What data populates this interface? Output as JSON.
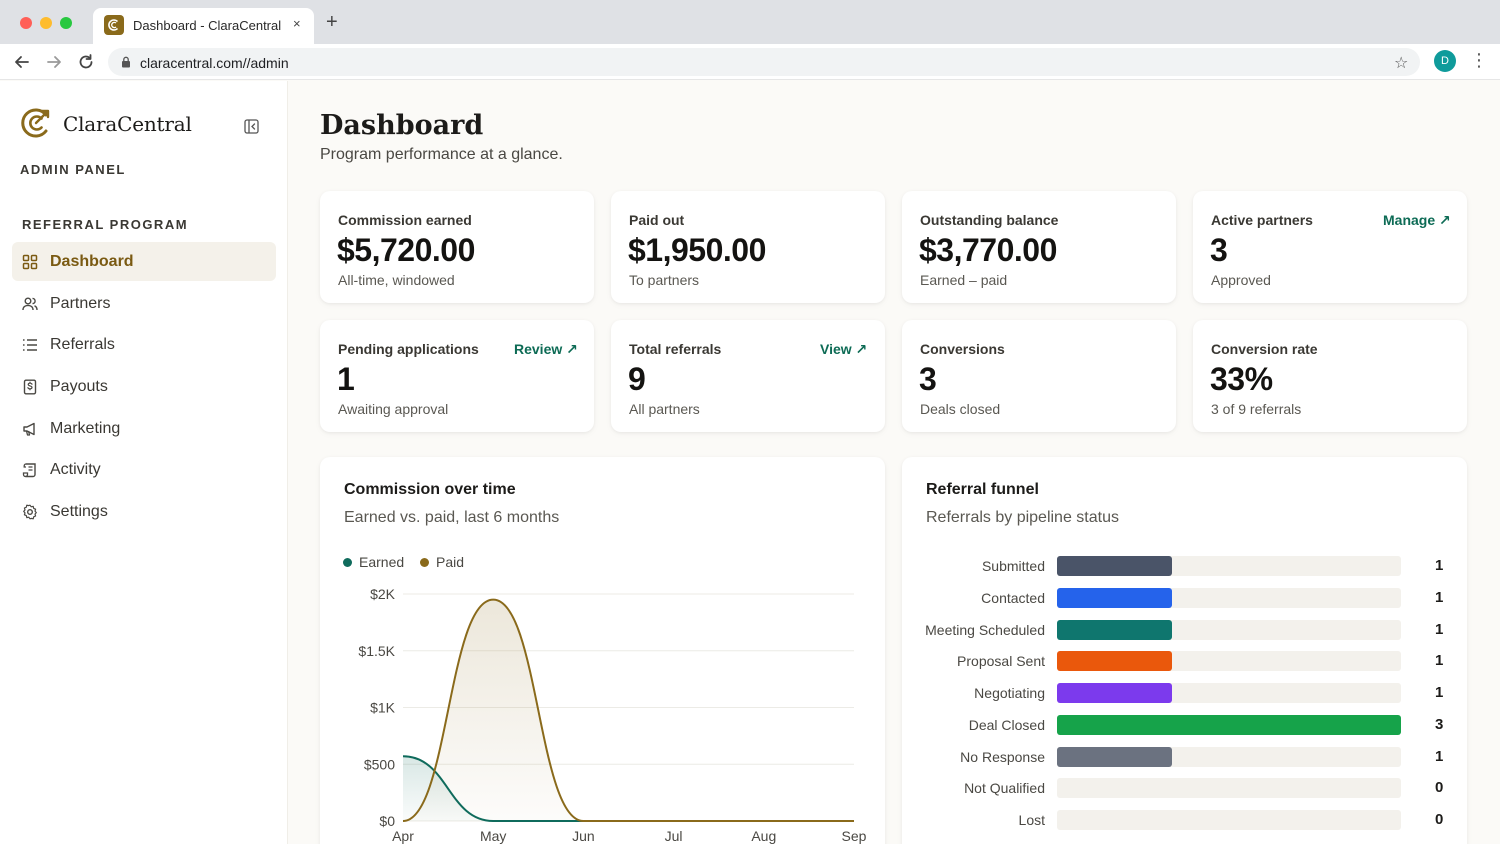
{
  "browser": {
    "tab_title": "Dashboard - ClaraCentral",
    "tab_close": "×",
    "new_tab": "+",
    "url": "claracentral.com//admin",
    "profile_initial": "D"
  },
  "sidebar": {
    "brand": "ClaraCentral",
    "admin_label": "ADMIN PANEL",
    "section_label": "REFERRAL PROGRAM",
    "items": [
      {
        "label": "Dashboard",
        "icon": "grid-icon",
        "active": true
      },
      {
        "label": "Partners",
        "icon": "users-icon",
        "active": false
      },
      {
        "label": "Referrals",
        "icon": "list-icon",
        "active": false
      },
      {
        "label": "Payouts",
        "icon": "dollar-doc-icon",
        "active": false
      },
      {
        "label": "Marketing",
        "icon": "megaphone-icon",
        "active": false
      },
      {
        "label": "Activity",
        "icon": "scroll-icon",
        "active": false
      },
      {
        "label": "Settings",
        "icon": "gear-icon",
        "active": false
      }
    ]
  },
  "header": {
    "title": "Dashboard",
    "subtitle": "Program performance at a glance."
  },
  "stats": [
    {
      "label": "Commission earned",
      "value": "$5,720.00",
      "note": "All-time, windowed",
      "link": ""
    },
    {
      "label": "Paid out",
      "value": "$1,950.00",
      "note": "To partners",
      "link": ""
    },
    {
      "label": "Outstanding balance",
      "value": "$3,770.00",
      "note": "Earned – paid",
      "link": ""
    },
    {
      "label": "Active partners",
      "value": "3",
      "note": "Approved",
      "link": "Manage ↗"
    },
    {
      "label": "Pending applications",
      "value": "1",
      "note": "Awaiting approval",
      "link": "Review ↗"
    },
    {
      "label": "Total referrals",
      "value": "9",
      "note": "All partners",
      "link": "View ↗"
    },
    {
      "label": "Conversions",
      "value": "3",
      "note": "Deals closed",
      "link": ""
    },
    {
      "label": "Conversion rate",
      "value": "33%",
      "note": "3 of 9 referrals",
      "link": ""
    }
  ],
  "commission_panel": {
    "title": "Commission over time",
    "subtitle": "Earned vs. paid, last 6 months"
  },
  "funnel_panel": {
    "title": "Referral funnel",
    "subtitle": "Referrals by pipeline status"
  },
  "colors": {
    "accent": "#7a5a12",
    "earned": "#0f6b5c",
    "paid": "#8a6a1b",
    "link": "#0d6b55"
  },
  "chart_data": [
    {
      "type": "area",
      "x": [
        "Apr",
        "May",
        "Jun",
        "Jul",
        "Aug",
        "Sep"
      ],
      "ylim": [
        0,
        2000
      ],
      "yticks": [
        "$0",
        "$500",
        "$1K",
        "$1.5K",
        "$2K"
      ],
      "ytick_values": [
        0,
        500,
        1000,
        1500,
        2000
      ],
      "series": [
        {
          "name": "Earned",
          "color": "#0f6b5c",
          "values": [
            570,
            0,
            0,
            0,
            0,
            0
          ]
        },
        {
          "name": "Paid",
          "color": "#8a6a1b",
          "values": [
            0,
            1950,
            0,
            0,
            0,
            0
          ]
        }
      ],
      "legend": "top-left",
      "grid": true
    },
    {
      "type": "bar",
      "orientation": "horizontal",
      "categories": [
        "Submitted",
        "Contacted",
        "Meeting Scheduled",
        "Proposal Sent",
        "Negotiating",
        "Deal Closed",
        "No Response",
        "Not Qualified",
        "Lost"
      ],
      "values": [
        1,
        1,
        1,
        1,
        1,
        3,
        1,
        0,
        0
      ],
      "colors": [
        "#4a5468",
        "#2563eb",
        "#0f766e",
        "#ea580c",
        "#7c3aed",
        "#16a34a",
        "#6b7280",
        "#9ca3af",
        "#9ca3af"
      ],
      "xlim": [
        0,
        3
      ]
    }
  ]
}
